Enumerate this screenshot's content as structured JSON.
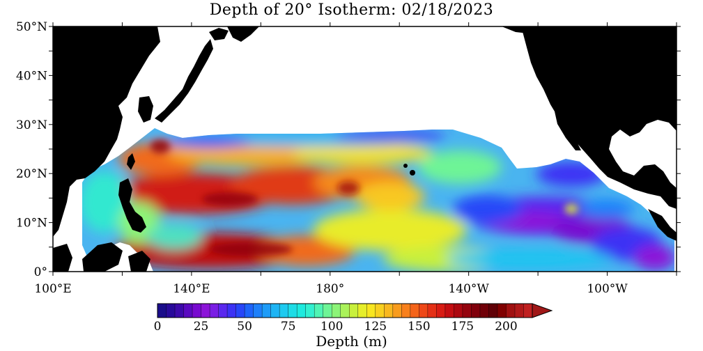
{
  "title": "Depth of 20° Isotherm: 02/18/2023",
  "map": {
    "lat_labels": [
      "50°N",
      "40°N",
      "30°N",
      "20°N",
      "10°N",
      "0°"
    ],
    "lon_labels": [
      "100°E",
      "140°E",
      "180°",
      "140°W",
      "100°W"
    ],
    "lat_range": [
      0,
      50
    ],
    "lon_range_east": [
      100,
      280
    ],
    "colors": {
      "land": "#000000",
      "no_data": "#ffffff"
    }
  },
  "colorbar": {
    "title": "Depth (m)",
    "tick_labels": [
      "0",
      "25",
      "50",
      "75",
      "100",
      "125",
      "150",
      "175",
      "200"
    ],
    "range": [
      0,
      215
    ],
    "step": 5,
    "colors": [
      "#1a0d8a",
      "#280a9a",
      "#3c0aaa",
      "#5a0ac0",
      "#780ad0",
      "#8c14d8",
      "#7a1ee4",
      "#5a28ee",
      "#3c32f4",
      "#2846f8",
      "#1e64fa",
      "#1e80fa",
      "#1e9cf8",
      "#1eb4f4",
      "#1ecaf0",
      "#1edce6",
      "#1eeade",
      "#32f0d0",
      "#50f4b4",
      "#6ef496",
      "#8cf478",
      "#aaf25a",
      "#c8f03c",
      "#e6ee2a",
      "#f8e620",
      "#f8d020",
      "#f8b820",
      "#f89c1e",
      "#f8801c",
      "#f4641a",
      "#ee4818",
      "#e43016",
      "#d81c14",
      "#c40e12",
      "#ac0810",
      "#94040e",
      "#80000c",
      "#700008",
      "#600006",
      "#800000",
      "#a01010",
      "#b01818",
      "#c02020"
    ],
    "arrow_color": "#a01818"
  }
}
